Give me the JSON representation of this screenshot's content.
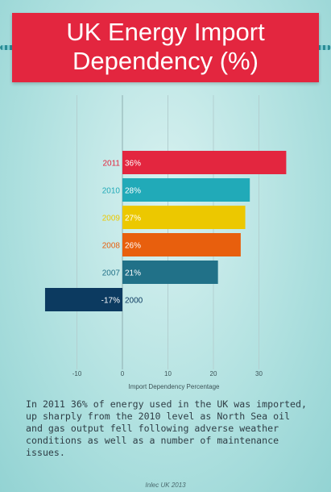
{
  "header": {
    "title_line1": "UK Energy Import",
    "title_line2": "Dependency (%)"
  },
  "chart_data": {
    "type": "bar",
    "orientation": "horizontal",
    "categories": [
      "2011",
      "2010",
      "2009",
      "2008",
      "2007",
      "2000"
    ],
    "values": [
      36,
      28,
      27,
      26,
      21,
      -17
    ],
    "value_labels": [
      "36%",
      "28%",
      "27%",
      "26%",
      "21%",
      "-17%"
    ],
    "colors": [
      "#e3263f",
      "#21aab8",
      "#ecc800",
      "#e85f0d",
      "#217188",
      "#0c3a60"
    ],
    "xlabel": "Import Dependency Percentage",
    "xlim": [
      -10,
      35
    ],
    "xticks": [
      -10,
      0,
      10,
      20,
      30
    ],
    "grid": true
  },
  "description": "In 2011 36% of energy used in the UK was imported, up sharply from the 2010 level as North Sea oil and gas output fell following adverse weather conditions as well as a number of maintenance issues.",
  "footer": "Inlec UK 2013"
}
